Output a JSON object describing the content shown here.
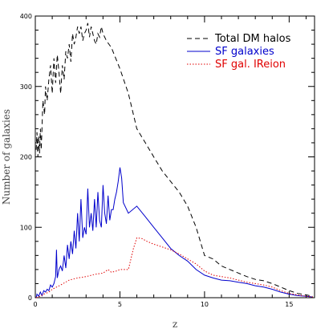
{
  "chart_data": {
    "type": "line",
    "xlabel": "z",
    "ylabel": "Number of galaxies",
    "xlim": [
      0,
      16.5
    ],
    "ylim": [
      0,
      400
    ],
    "xticks": [
      0,
      5,
      10,
      15
    ],
    "yticks": [
      0,
      100,
      200,
      300,
      400
    ],
    "grid": false,
    "legend_position": "top-right",
    "series": [
      {
        "name": "Total DM halos",
        "color": "#000000",
        "dash": "dashed",
        "x": [
          0.05,
          0.1,
          0.15,
          0.2,
          0.25,
          0.3,
          0.35,
          0.45,
          0.55,
          0.6,
          0.7,
          0.8,
          0.9,
          1.0,
          1.1,
          1.2,
          1.3,
          1.4,
          1.5,
          1.6,
          1.7,
          1.8,
          1.9,
          2.0,
          2.1,
          2.2,
          2.3,
          2.4,
          2.5,
          2.6,
          2.7,
          2.8,
          2.9,
          3.0,
          3.1,
          3.2,
          3.3,
          3.4,
          3.5,
          3.6,
          3.7,
          3.8,
          3.9,
          4.0,
          4.2,
          4.5,
          5.0,
          5.5,
          6.0,
          6.5,
          7.0,
          7.5,
          8.0,
          8.5,
          9.0,
          9.5,
          10.0,
          10.5,
          11.0,
          11.5,
          12.0,
          12.5,
          13.0,
          13.5,
          14.0,
          14.5,
          15.0,
          15.5,
          16.0,
          16.4
        ],
        "values": [
          210,
          235,
          200,
          230,
          205,
          240,
          210,
          280,
          260,
          300,
          280,
          310,
          330,
          290,
          340,
          305,
          345,
          320,
          290,
          330,
          310,
          350,
          340,
          360,
          335,
          375,
          360,
          370,
          385,
          375,
          385,
          365,
          375,
          380,
          390,
          370,
          385,
          375,
          365,
          360,
          375,
          370,
          385,
          375,
          365,
          355,
          325,
          290,
          240,
          220,
          200,
          180,
          165,
          150,
          130,
          100,
          60,
          55,
          45,
          40,
          35,
          30,
          26,
          24,
          20,
          15,
          10,
          6,
          4,
          2
        ]
      },
      {
        "name": "SF galaxies",
        "color": "#0000cc",
        "dash": "solid",
        "x": [
          0.05,
          0.1,
          0.2,
          0.3,
          0.4,
          0.5,
          0.6,
          0.7,
          0.8,
          0.9,
          1.0,
          1.1,
          1.2,
          1.25,
          1.3,
          1.4,
          1.5,
          1.6,
          1.7,
          1.8,
          1.9,
          2.0,
          2.1,
          2.2,
          2.3,
          2.4,
          2.5,
          2.6,
          2.7,
          2.8,
          2.9,
          3.0,
          3.1,
          3.2,
          3.3,
          3.4,
          3.5,
          3.6,
          3.7,
          3.8,
          3.9,
          4.0,
          4.1,
          4.2,
          4.3,
          4.4,
          4.5,
          4.6,
          4.7,
          4.8,
          4.9,
          5.0,
          5.1,
          5.2,
          5.5,
          6.0,
          6.5,
          7.0,
          7.5,
          8.0,
          8.5,
          9.0,
          9.5,
          10.0,
          10.5,
          11.0,
          11.5,
          12.0,
          12.5,
          13.0,
          13.5,
          14.0,
          14.5,
          15.0,
          15.5,
          16.0,
          16.4
        ],
        "values": [
          0,
          5,
          2,
          8,
          3,
          10,
          8,
          12,
          10,
          18,
          15,
          20,
          30,
          68,
          28,
          40,
          45,
          38,
          60,
          42,
          75,
          55,
          80,
          62,
          95,
          70,
          120,
          80,
          140,
          85,
          100,
          90,
          155,
          100,
          120,
          95,
          140,
          100,
          150,
          110,
          100,
          160,
          120,
          105,
          145,
          110,
          125,
          125,
          140,
          150,
          165,
          185,
          170,
          135,
          120,
          130,
          115,
          100,
          85,
          70,
          60,
          52,
          40,
          32,
          28,
          25,
          24,
          22,
          20,
          17,
          15,
          12,
          8,
          5,
          3,
          2,
          1
        ]
      },
      {
        "name": "SF gal. IReion",
        "color": "#e00000",
        "dash": "dotted",
        "x": [
          0.05,
          0.3,
          0.5,
          0.8,
          1.0,
          1.5,
          2.0,
          2.5,
          3.0,
          3.5,
          4.0,
          4.3,
          4.5,
          4.8,
          5.0,
          5.5,
          5.8,
          6.0,
          6.3,
          6.6,
          7.0,
          7.5,
          8.0,
          8.5,
          9.0,
          9.5,
          10.0,
          10.5,
          11.0,
          11.5,
          12.0,
          12.5,
          13.0,
          13.5,
          14.0,
          14.5,
          15.0,
          15.5,
          16.0,
          16.4
        ],
        "values": [
          0,
          2,
          5,
          8,
          12,
          18,
          25,
          28,
          30,
          33,
          35,
          40,
          36,
          38,
          40,
          40,
          70,
          85,
          84,
          80,
          76,
          72,
          68,
          62,
          55,
          48,
          38,
          32,
          30,
          28,
          25,
          22,
          20,
          18,
          15,
          10,
          6,
          4,
          2,
          1
        ]
      }
    ]
  }
}
